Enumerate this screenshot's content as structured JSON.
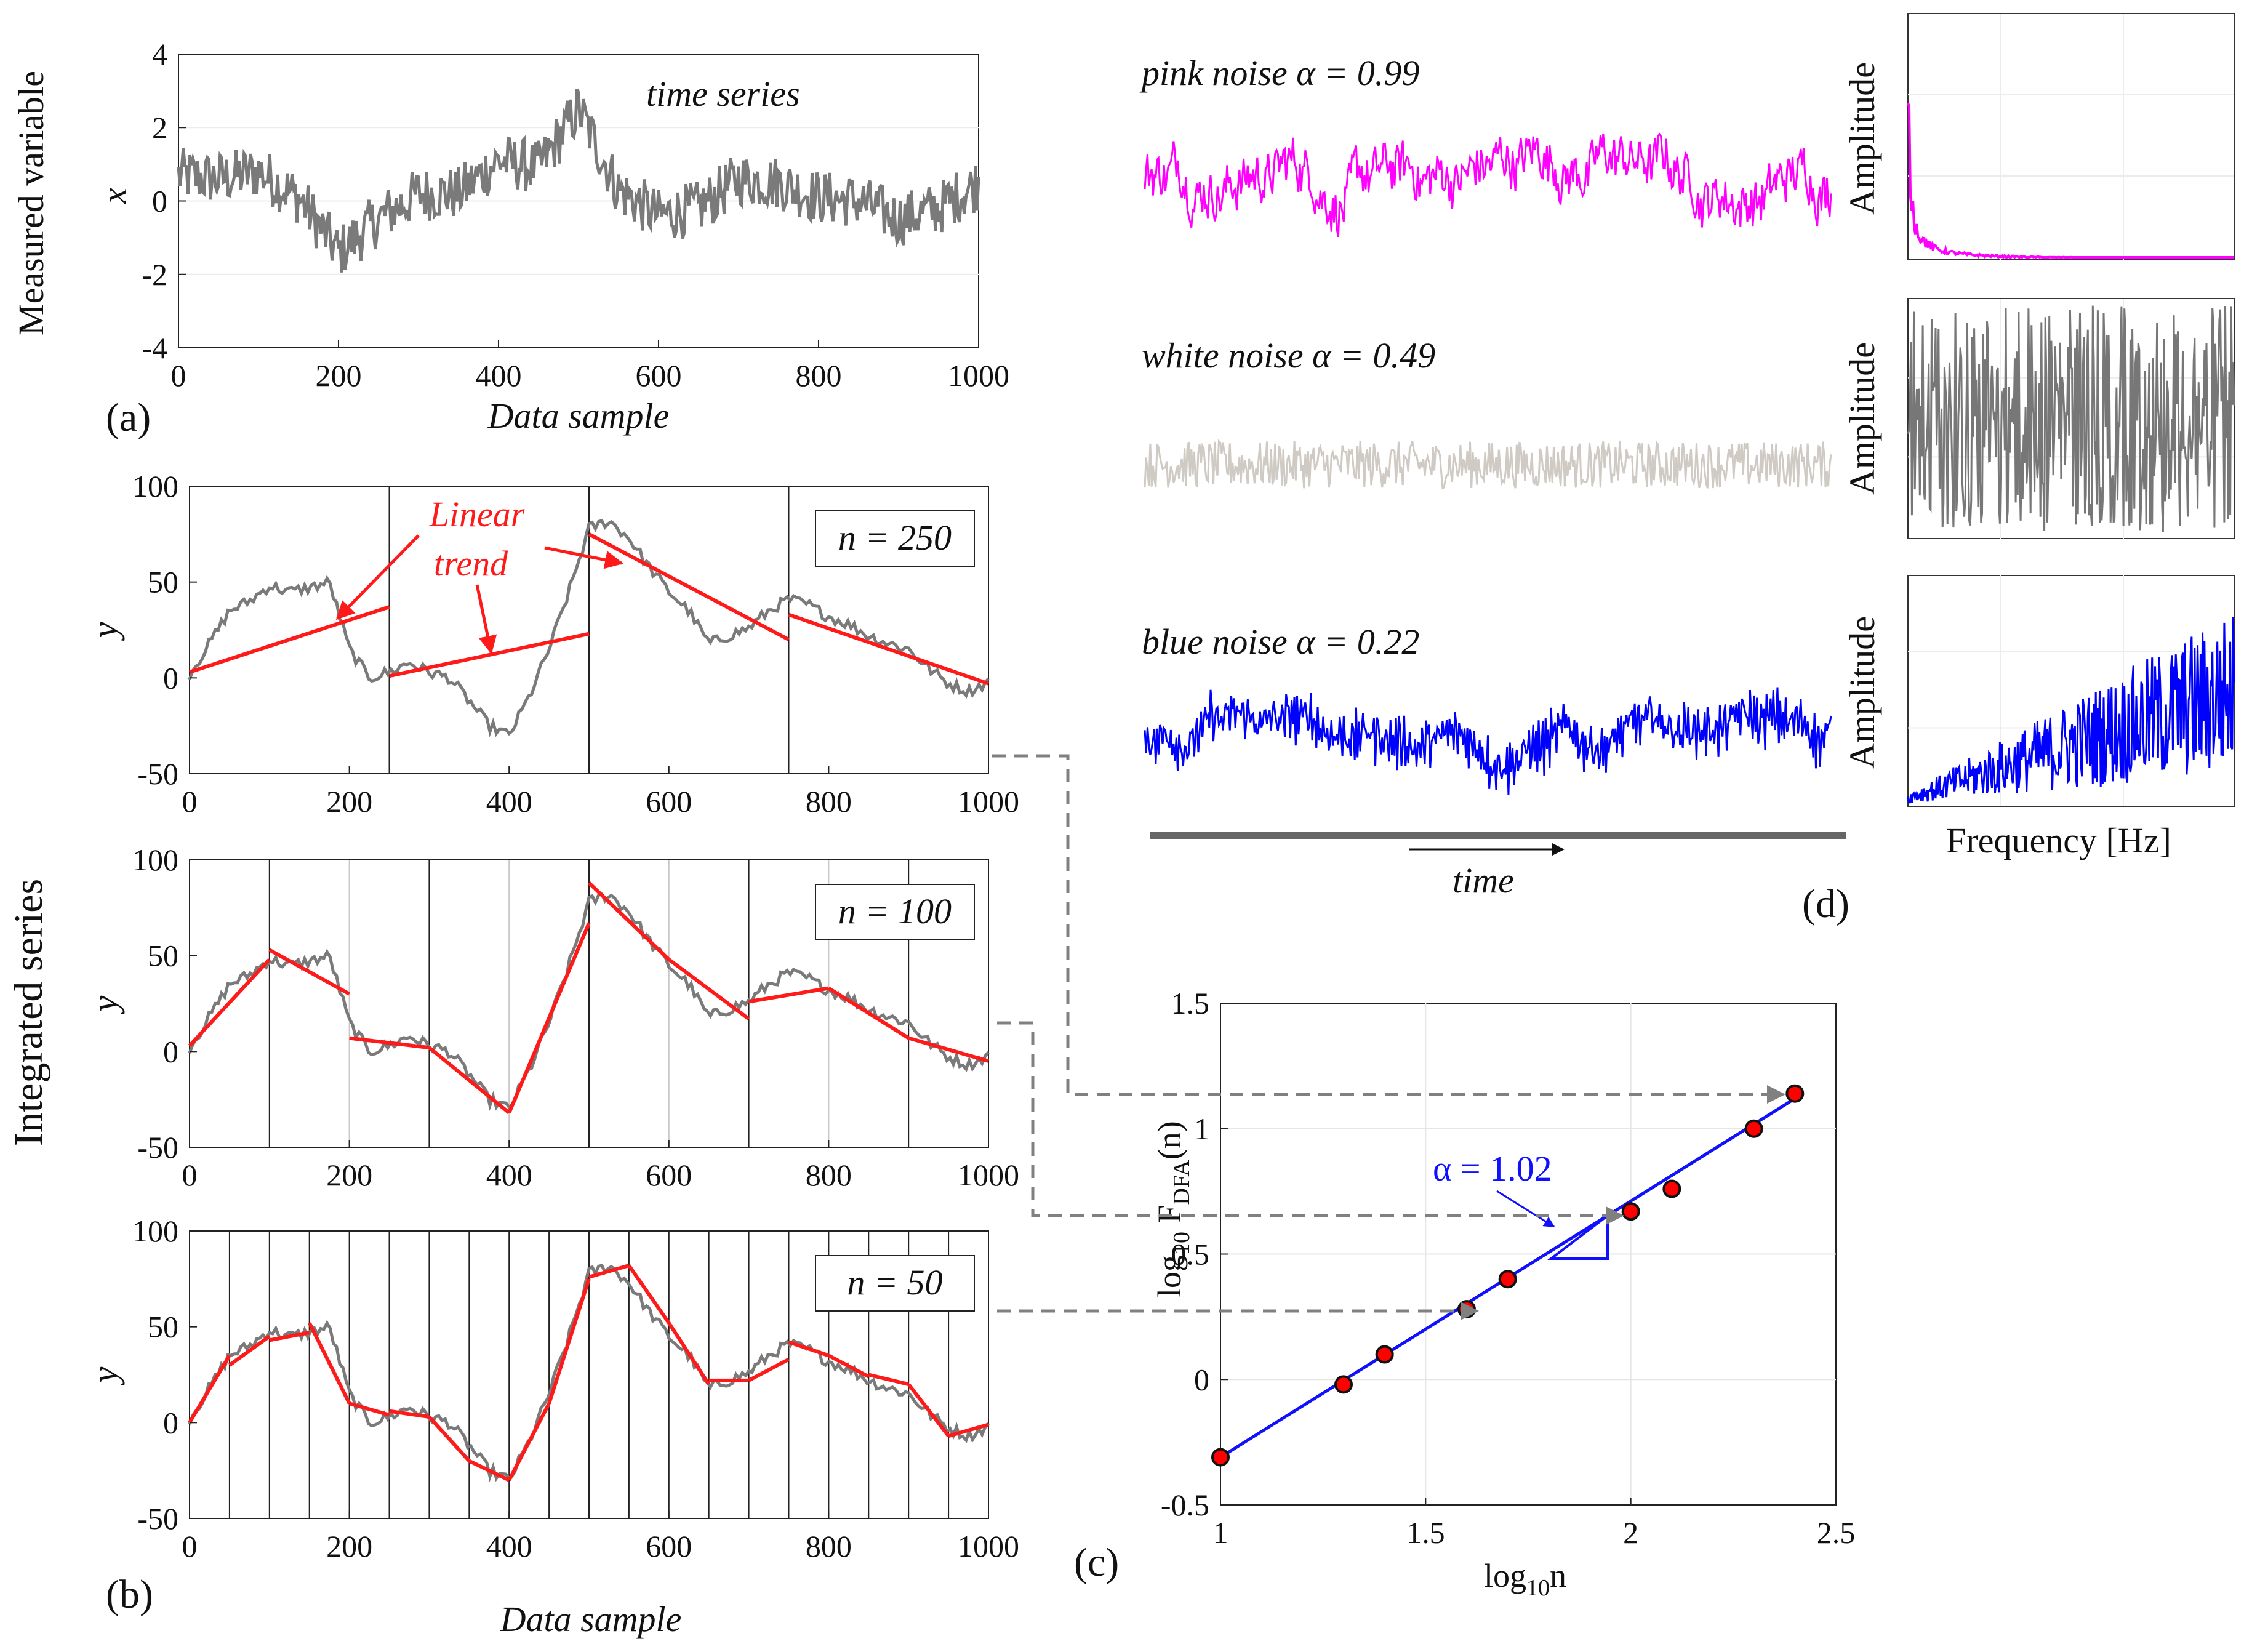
{
  "colors": {
    "series_gray": "#7a7a7a",
    "trend_red": "#ff1a1a",
    "pink": "#ff00ff",
    "white_noise": "#cfcac3",
    "white_spec": "#777777",
    "blue": "#0000ff",
    "fit_blue": "#1010ff",
    "dot_red": "#ff0000",
    "dash_gray": "#808080"
  },
  "panel_a": {
    "label": "(a)",
    "ylabel_outer": "Measured variable",
    "ylabel_var": "x",
    "xlabel": "Data sample",
    "annotation": "time series",
    "xticks": [
      "0",
      "200",
      "400",
      "600",
      "800",
      "1000"
    ],
    "yticks": [
      "4",
      "2",
      "0",
      "-2",
      "-4"
    ],
    "chart_data": {
      "type": "line",
      "title": "time series",
      "xlim": [
        0,
        1000
      ],
      "ylim": [
        -4,
        4
      ],
      "xlabel": "Data sample",
      "ylabel": "x",
      "x": [
        0,
        50,
        100,
        150,
        200,
        250,
        300,
        350,
        400,
        450,
        500,
        550,
        600,
        650,
        700,
        750,
        800,
        850,
        900,
        950,
        1000
      ],
      "values": [
        0.7,
        0.6,
        0.8,
        0.1,
        -1.4,
        -0.5,
        0.2,
        0.2,
        1.1,
        0.9,
        2.5,
        0.3,
        -0.4,
        -0.2,
        0.6,
        0.5,
        0.1,
        0.0,
        -0.5,
        -0.2,
        0.5
      ]
    }
  },
  "panel_b": {
    "label": "(b)",
    "ylabel_outer": "Integrated series",
    "ylabel_var": "y",
    "xlabel": "Data sample",
    "xticks": [
      "0",
      "200",
      "400",
      "600",
      "800",
      "1000"
    ],
    "yticks": [
      "100",
      "50",
      "0",
      "-50"
    ],
    "annotations": {
      "linear": "Linear",
      "trend": "trend"
    },
    "subplots": [
      {
        "n_label": "n = 250",
        "n": 250
      },
      {
        "n_label": "n = 100",
        "n": 100
      },
      {
        "n_label": "n = 50",
        "n": 50
      }
    ],
    "chart_data": {
      "type": "line",
      "xlim": [
        0,
        1000
      ],
      "ylim": [
        -50,
        100
      ],
      "xlabel": "Data sample",
      "ylabel": "y",
      "x": [
        0,
        25,
        50,
        75,
        100,
        125,
        150,
        175,
        200,
        225,
        250,
        275,
        300,
        325,
        350,
        375,
        400,
        425,
        450,
        475,
        500,
        525,
        550,
        575,
        600,
        625,
        650,
        675,
        700,
        725,
        750,
        775,
        800,
        825,
        850,
        875,
        900,
        925,
        950,
        975,
        1000
      ],
      "values": [
        2,
        18,
        35,
        40,
        48,
        45,
        47,
        50,
        15,
        0,
        3,
        8,
        3,
        0,
        -12,
        -25,
        -30,
        -10,
        15,
        45,
        78,
        82,
        73,
        58,
        45,
        35,
        18,
        22,
        26,
        35,
        41,
        38,
        32,
        28,
        22,
        18,
        15,
        5,
        -3,
        -7,
        -2
      ],
      "trends": {
        "n250": [
          [
            0,
            3,
            250,
            37
          ],
          [
            250,
            1,
            500,
            23
          ],
          [
            500,
            75,
            750,
            20
          ],
          [
            750,
            33,
            1000,
            -3
          ]
        ],
        "n100": [
          [
            0,
            3,
            100,
            48
          ],
          [
            100,
            53,
            200,
            30
          ],
          [
            200,
            7,
            300,
            2
          ],
          [
            300,
            2,
            400,
            -32
          ],
          [
            400,
            -32,
            500,
            67
          ],
          [
            500,
            88,
            600,
            48
          ],
          [
            600,
            48,
            700,
            17
          ],
          [
            700,
            26,
            800,
            33
          ],
          [
            800,
            33,
            900,
            7
          ],
          [
            900,
            7,
            1000,
            -5
          ]
        ],
        "n50": [
          [
            0,
            0,
            50,
            35
          ],
          [
            50,
            30,
            100,
            45
          ],
          [
            100,
            43,
            150,
            47
          ],
          [
            150,
            52,
            200,
            10
          ],
          [
            200,
            10,
            250,
            4
          ],
          [
            250,
            6,
            300,
            3
          ],
          [
            300,
            3,
            350,
            -20
          ],
          [
            350,
            -20,
            400,
            -30
          ],
          [
            400,
            -30,
            450,
            10
          ],
          [
            450,
            10,
            500,
            75
          ],
          [
            500,
            76,
            550,
            82
          ],
          [
            550,
            82,
            600,
            52
          ],
          [
            600,
            52,
            650,
            20
          ],
          [
            650,
            22,
            700,
            22
          ],
          [
            700,
            22,
            750,
            33
          ],
          [
            750,
            42,
            800,
            35
          ],
          [
            800,
            35,
            850,
            24
          ],
          [
            850,
            25,
            900,
            20
          ],
          [
            900,
            20,
            950,
            -7
          ],
          [
            950,
            -7,
            1000,
            -1
          ]
        ]
      }
    }
  },
  "panel_c": {
    "label": "(c)",
    "ylabel_main": "log",
    "ylabel_sub": "10",
    "ylabel_f": "F",
    "ylabel_fsub": "DFA",
    "ylabel_end": "(n)",
    "xlabel_main": "log",
    "xlabel_sub": "10",
    "xlabel_end": "n",
    "slope_label": "α = 1.02",
    "xticks": [
      "1",
      "1.5",
      "2",
      "2.5"
    ],
    "yticks": [
      "1.5",
      "1",
      "0.5",
      "0",
      "-0.5"
    ],
    "chart_data": {
      "type": "scatter",
      "xlim": [
        1,
        2.5
      ],
      "ylim": [
        -0.5,
        1.5
      ],
      "xlabel": "log10n",
      "ylabel": "log10 FDFA(n)",
      "x": [
        1.0,
        1.3,
        1.4,
        1.6,
        1.7,
        2.0,
        2.1,
        2.3,
        2.4
      ],
      "values": [
        -0.31,
        -0.02,
        0.1,
        0.28,
        0.4,
        0.67,
        0.76,
        1.0,
        1.14
      ],
      "fit": {
        "slope": 1.02,
        "x": [
          1.0,
          2.4
        ],
        "y": [
          -0.31,
          1.12
        ]
      }
    }
  },
  "panel_d": {
    "label": "(d)",
    "time_label": "time",
    "freq_label": "Frequency [Hz]",
    "amplitude_label": "Amplitude",
    "noises": [
      {
        "name": "pink",
        "label": "pink noise α = 0.99",
        "alpha": 0.99
      },
      {
        "name": "white",
        "label": "white noise α = 0.49",
        "alpha": 0.49
      },
      {
        "name": "blue",
        "label": "blue noise α = 0.22",
        "alpha": 0.22
      }
    ]
  }
}
